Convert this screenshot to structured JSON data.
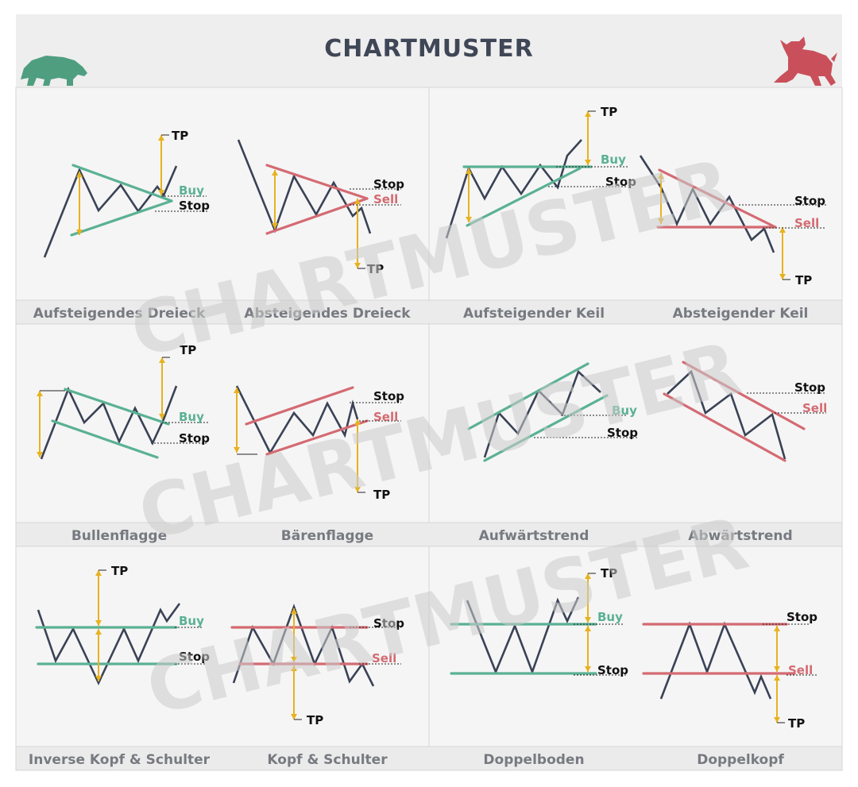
{
  "title": "CHARTMUSTER",
  "watermark": "CHARTMUSTER",
  "colors": {
    "line": "#3a4256",
    "green": "#5ab193",
    "red": "#d46a72",
    "gold": "#e8b21e",
    "caption": "#777a80",
    "grid": "#d6d6d6",
    "panel": "#f5f5f5"
  },
  "icons": {
    "left": "bear-icon",
    "right": "bull-icon"
  },
  "labels": {
    "tp": "TP",
    "buy": "Buy",
    "sell": "Sell",
    "stop": "Stop"
  },
  "patterns": [
    "Aufsteigendes Dreieck",
    "Absteigendes Dreieck",
    "Aufsteigender Keil",
    "Absteigender Keil",
    "Bullenflagge",
    "Bärenflagge",
    "Aufwärtstrend",
    "Abwärtstrend",
    "Inverse Kopf & Schulter",
    "Kopf & Schulter",
    "Doppelboden",
    "Doppelkopf"
  ]
}
